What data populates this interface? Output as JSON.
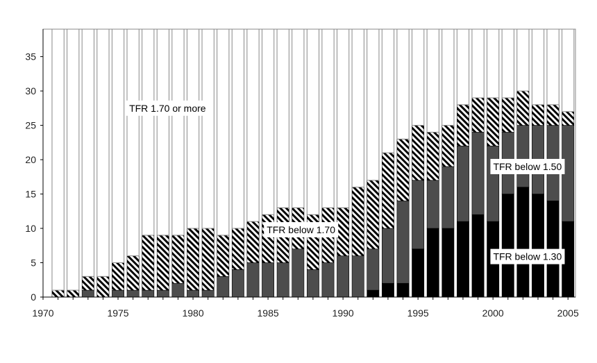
{
  "chart_data": {
    "type": "bar",
    "stacked": true,
    "years": [
      1971,
      1972,
      1973,
      1974,
      1975,
      1976,
      1977,
      1978,
      1979,
      1980,
      1981,
      1982,
      1983,
      1984,
      1985,
      1986,
      1987,
      1988,
      1989,
      1990,
      1991,
      1992,
      1993,
      1994,
      1995,
      1996,
      1997,
      1998,
      1999,
      2000,
      2001,
      2002,
      2003,
      2004,
      2005
    ],
    "series": [
      {
        "name": "TFR below 1.30",
        "fill": "solid-black",
        "values": [
          0,
          0,
          0,
          0,
          0,
          0,
          0,
          0,
          0,
          0,
          0,
          0,
          0,
          0,
          0,
          0,
          0,
          0,
          0,
          0,
          0,
          1,
          2,
          2,
          7,
          10,
          10,
          11,
          12,
          11,
          15,
          16,
          15,
          14,
          11
        ]
      },
      {
        "name": "TFR below 1.50",
        "fill": "dark-gray",
        "values": [
          0,
          0,
          1,
          0,
          1,
          1,
          1,
          1,
          2,
          1,
          1,
          3,
          4,
          5,
          5,
          5,
          7,
          4,
          5,
          6,
          6,
          6,
          8,
          12,
          10,
          7,
          9,
          11,
          12,
          11,
          9,
          9,
          10,
          11,
          14
        ]
      },
      {
        "name": "TFR below 1.70",
        "fill": "hatched",
        "values": [
          1,
          1,
          2,
          3,
          4,
          5,
          8,
          8,
          7,
          9,
          9,
          6,
          6,
          6,
          7,
          8,
          6,
          8,
          8,
          7,
          10,
          10,
          11,
          9,
          8,
          7,
          6,
          6,
          5,
          7,
          5,
          5,
          3,
          3,
          2
        ]
      },
      {
        "name": "TFR 1.70 or more",
        "fill": "white",
        "remainder_to": 39
      }
    ],
    "x_tick_labels": [
      "1970",
      "1975",
      "1980",
      "1985",
      "1990",
      "1995",
      "2000",
      "2005"
    ],
    "y_tick_labels": [
      "0",
      "5",
      "10",
      "15",
      "20",
      "25",
      "30",
      "35"
    ],
    "ylim": [
      0,
      39
    ],
    "xlim": [
      1970,
      2005.5
    ],
    "grid": false,
    "annotations": [
      {
        "text": "TFR 1.70 or more",
        "x": 1978.3,
        "y": 27.5
      },
      {
        "text": "TFR below 1.70",
        "x": 1987.2,
        "y": 9.8
      },
      {
        "text": "TFR below 1.50",
        "x": 2002.3,
        "y": 19.0
      },
      {
        "text": "TFR below 1.30",
        "x": 2002.3,
        "y": 5.9
      }
    ],
    "colors": {
      "solid-black": "#000000",
      "dark-gray": "#4d4d4d",
      "white": "#ffffff",
      "outline": "#888888"
    }
  }
}
